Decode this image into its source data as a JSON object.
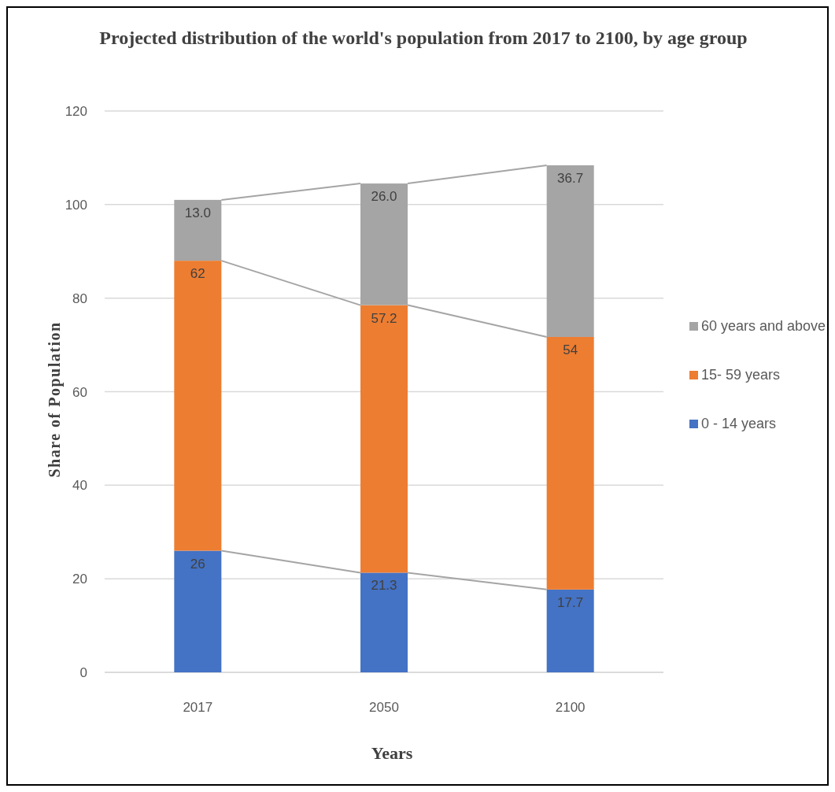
{
  "chart_data": {
    "type": "bar",
    "title": "Projected distribution of the world's population from 2017 to 2100, by age group",
    "xlabel": "Years",
    "ylabel": "Share of Population",
    "categories": [
      "2017",
      "2050",
      "2100"
    ],
    "stacked": true,
    "series": [
      {
        "name": "0 - 14 years",
        "color": "#4472c4",
        "values": [
          26,
          21.3,
          17.7
        ],
        "value_labels": [
          "26",
          "21.3",
          "17.7"
        ]
      },
      {
        "name": "15- 59 years",
        "color": "#ed7d31",
        "values": [
          62,
          57.2,
          54
        ],
        "value_labels": [
          "62",
          "57.2",
          "54"
        ]
      },
      {
        "name": "60 years and above",
        "color": "#a5a5a5",
        "values": [
          13.0,
          26.0,
          36.7
        ],
        "value_labels": [
          "13.0",
          "26.0",
          "36.7"
        ]
      }
    ],
    "ylim": [
      0,
      120
    ],
    "yticks": [
      0,
      20,
      40,
      60,
      80,
      100,
      120
    ],
    "grid": "y",
    "legend": "right"
  }
}
